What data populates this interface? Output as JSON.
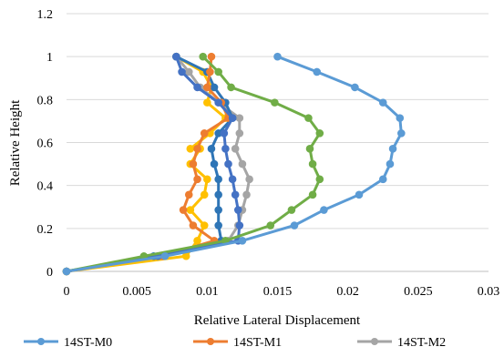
{
  "chart_data": {
    "type": "line",
    "xlabel": "Relative Lateral Displacement",
    "ylabel": "Relative Height",
    "xlim": [
      0,
      0.03
    ],
    "ylim": [
      0,
      1.2
    ],
    "x_ticks": [
      "0",
      "0.005",
      "0.01",
      "0.015",
      "0.02",
      "0.025",
      "0.03"
    ],
    "y_ticks": [
      "0",
      "0.2",
      "0.4",
      "0.6",
      "0.8",
      "1",
      "1.2"
    ],
    "x_tick_values": [
      0,
      0.005,
      0.01,
      0.015,
      0.02,
      0.025,
      0.03
    ],
    "y_tick_values": [
      0,
      0.2,
      0.4,
      0.6,
      0.8,
      1.0,
      1.2
    ],
    "grid": "horizontal",
    "legend_position": "bottom",
    "series": [
      {
        "name": "",
        "color": "#FFC000",
        "points": [
          [
            0,
            0
          ],
          [
            0.0085,
            0.071
          ],
          [
            0.0093,
            0.143
          ],
          [
            0.0098,
            0.214
          ],
          [
            0.0088,
            0.286
          ],
          [
            0.0098,
            0.357
          ],
          [
            0.01,
            0.429
          ],
          [
            0.0088,
            0.5
          ],
          [
            0.0095,
            0.571
          ],
          [
            0.0088,
            0.571
          ],
          [
            0.0102,
            0.643
          ],
          [
            0.0113,
            0.714
          ],
          [
            0.01,
            0.786
          ],
          [
            0.0103,
            0.857
          ],
          [
            0.0097,
            0.929
          ],
          [
            0.0078,
            1.0
          ]
        ]
      },
      {
        "name": "14ST-M2",
        "color": "#A5A5A5",
        "points": [
          [
            0,
            0
          ],
          [
            0.0068,
            0.071
          ],
          [
            0.0115,
            0.143
          ],
          [
            0.0122,
            0.214
          ],
          [
            0.0125,
            0.286
          ],
          [
            0.0128,
            0.357
          ],
          [
            0.013,
            0.429
          ],
          [
            0.0125,
            0.5
          ],
          [
            0.012,
            0.571
          ],
          [
            0.0123,
            0.643
          ],
          [
            0.0123,
            0.714
          ],
          [
            0.0108,
            0.786
          ],
          [
            0.0095,
            0.857
          ],
          [
            0.0087,
            0.929
          ],
          [
            0.0078,
            1.0
          ]
        ]
      },
      {
        "name": "",
        "color": "#2E75B6",
        "points": [
          [
            0,
            0
          ],
          [
            0.0062,
            0.071
          ],
          [
            0.011,
            0.143
          ],
          [
            0.0108,
            0.214
          ],
          [
            0.0108,
            0.286
          ],
          [
            0.0108,
            0.357
          ],
          [
            0.0108,
            0.429
          ],
          [
            0.0105,
            0.5
          ],
          [
            0.0103,
            0.571
          ],
          [
            0.0108,
            0.643
          ],
          [
            0.0118,
            0.714
          ],
          [
            0.0113,
            0.786
          ],
          [
            0.0105,
            0.857
          ],
          [
            0.01,
            0.929
          ],
          [
            0.0078,
            1.0
          ]
        ]
      },
      {
        "name": "14ST-M1",
        "color": "#ED7D31",
        "points": [
          [
            0,
            0
          ],
          [
            0.0068,
            0.071
          ],
          [
            0.0105,
            0.143
          ],
          [
            0.009,
            0.214
          ],
          [
            0.0083,
            0.286
          ],
          [
            0.0087,
            0.357
          ],
          [
            0.0093,
            0.429
          ],
          [
            0.009,
            0.5
          ],
          [
            0.0093,
            0.571
          ],
          [
            0.0098,
            0.643
          ],
          [
            0.0115,
            0.714
          ],
          [
            0.011,
            0.786
          ],
          [
            0.01,
            0.857
          ],
          [
            0.0102,
            0.929
          ],
          [
            0.0103,
            1.0
          ]
        ]
      },
      {
        "name": "",
        "color": "#4472C4",
        "points": [
          [
            0,
            0
          ],
          [
            0.0065,
            0.071
          ],
          [
            0.0122,
            0.143
          ],
          [
            0.0123,
            0.214
          ],
          [
            0.0122,
            0.286
          ],
          [
            0.012,
            0.357
          ],
          [
            0.0118,
            0.429
          ],
          [
            0.0115,
            0.5
          ],
          [
            0.0113,
            0.571
          ],
          [
            0.0112,
            0.643
          ],
          [
            0.0118,
            0.714
          ],
          [
            0.0108,
            0.786
          ],
          [
            0.0093,
            0.857
          ],
          [
            0.0082,
            0.929
          ],
          [
            0.0078,
            1.0
          ]
        ]
      },
      {
        "name": "",
        "color": "#70AD47",
        "points": [
          [
            0,
            0
          ],
          [
            0.0055,
            0.071
          ],
          [
            0.0113,
            0.143
          ],
          [
            0.0145,
            0.214
          ],
          [
            0.016,
            0.286
          ],
          [
            0.0175,
            0.357
          ],
          [
            0.018,
            0.429
          ],
          [
            0.0175,
            0.5
          ],
          [
            0.0173,
            0.571
          ],
          [
            0.018,
            0.643
          ],
          [
            0.0172,
            0.714
          ],
          [
            0.0148,
            0.786
          ],
          [
            0.0117,
            0.857
          ],
          [
            0.0108,
            0.929
          ],
          [
            0.0097,
            1.0
          ]
        ]
      },
      {
        "name": "14ST-M0",
        "color": "#5B9BD5",
        "points": [
          [
            0,
            0
          ],
          [
            0.007,
            0.071
          ],
          [
            0.0125,
            0.143
          ],
          [
            0.0162,
            0.214
          ],
          [
            0.0183,
            0.286
          ],
          [
            0.0208,
            0.357
          ],
          [
            0.0225,
            0.429
          ],
          [
            0.023,
            0.5
          ],
          [
            0.0232,
            0.571
          ],
          [
            0.0238,
            0.643
          ],
          [
            0.0237,
            0.714
          ],
          [
            0.0225,
            0.786
          ],
          [
            0.0205,
            0.857
          ],
          [
            0.0178,
            0.929
          ],
          [
            0.015,
            1.0
          ]
        ]
      }
    ],
    "legend": [
      {
        "label": "14ST-M0",
        "color": "#5B9BD5"
      },
      {
        "label": "14ST-M1",
        "color": "#ED7D31"
      },
      {
        "label": "14ST-M2",
        "color": "#A5A5A5"
      }
    ]
  }
}
